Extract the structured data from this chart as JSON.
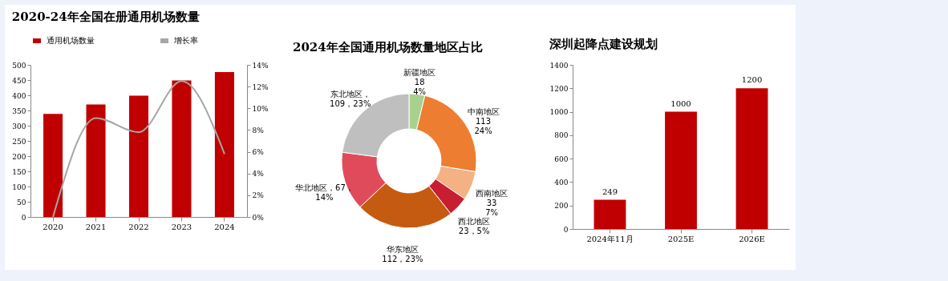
{
  "chart_data": [
    {
      "type": "bar",
      "title": "2020-24年全国在册通用机场数量",
      "categories": [
        "2020",
        "2021",
        "2022",
        "2023",
        "2024"
      ],
      "series": [
        {
          "name": "通用机场数量",
          "type": "bar",
          "color": "#c00000",
          "values": [
            339,
            370,
            399,
            449,
            476
          ]
        },
        {
          "name": "增长率",
          "type": "line",
          "axis": "y2",
          "color": "#a6a6a6",
          "values": [
            0,
            9.1,
            7.8,
            12.5,
            5.8
          ]
        }
      ],
      "ylim": [
        0,
        500
      ],
      "yticks": [
        0,
        50,
        100,
        150,
        200,
        250,
        300,
        350,
        400,
        450,
        500
      ],
      "y2lim": [
        0,
        14
      ],
      "y2ticks": [
        {
          "value": 0,
          "label": "0%"
        },
        {
          "value": 2,
          "label": "2%"
        },
        {
          "value": 4,
          "label": "4%"
        },
        {
          "value": 6,
          "label": "6%"
        },
        {
          "value": 8,
          "label": "8%"
        },
        {
          "value": 10,
          "label": "10%"
        },
        {
          "value": 12,
          "label": "12%"
        },
        {
          "value": 14,
          "label": "14%"
        }
      ],
      "legend": "top"
    },
    {
      "type": "donut",
      "title": "2024年全国通用机场数量地区占比",
      "categories": [
        "新疆地区",
        "中南地区",
        "西南地区",
        "西北地区",
        "华东地区",
        "华北地区",
        "东北地区"
      ],
      "values": [
        18,
        113,
        33,
        23,
        112,
        67,
        109
      ],
      "colors": [
        "#a9d18e",
        "#ed7d31",
        "#f4b183",
        "#c81e32",
        "#c55a11",
        "#e04b5c",
        "#bfbfbf"
      ],
      "value_labels": [
        "\n18\n4%",
        "\n113\n24%",
        "\n33\n7%",
        "\n23，5%",
        "\n112，23%",
        "，67，\n14%",
        "，\n109，23%"
      ]
    },
    {
      "type": "bar",
      "title": "深圳起降点建设规划",
      "categories": [
        "2024年11月",
        "2025E",
        "2026E"
      ],
      "values": [
        249,
        1000,
        1200
      ],
      "color": "#c00000",
      "ylim": [
        0,
        1400
      ],
      "yticks": [
        0,
        200,
        400,
        600,
        800,
        1000,
        1200,
        1400
      ],
      "data_labels": true
    }
  ]
}
